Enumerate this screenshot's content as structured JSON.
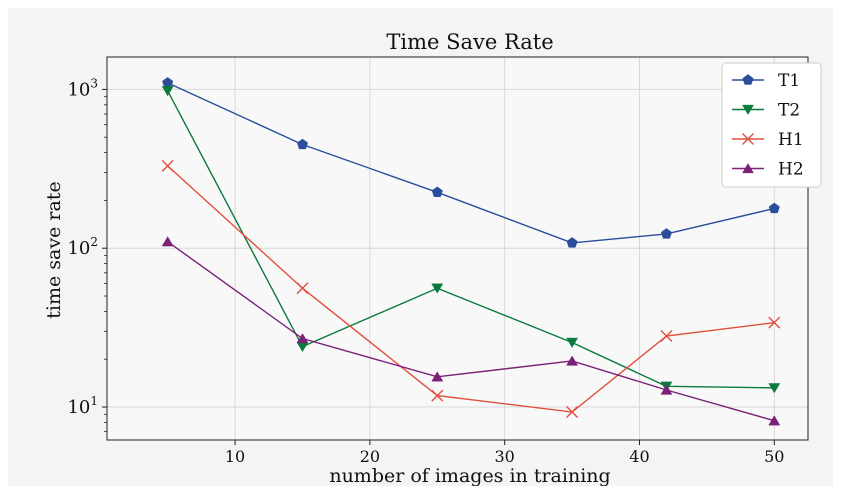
{
  "chart_data": {
    "type": "line",
    "title": "Time Save Rate",
    "xlabel": "number of images in training",
    "ylabel": "time save rate",
    "xlim": [
      0.5,
      52.5
    ],
    "ylim": [
      6.2,
      1600
    ],
    "yscale": "log",
    "x_ticks": [
      10,
      20,
      30,
      40,
      50
    ],
    "y_ticks": [
      {
        "base": "10",
        "exp": "1",
        "value": 10
      },
      {
        "base": "10",
        "exp": "2",
        "value": 100
      },
      {
        "base": "10",
        "exp": "3",
        "value": 1000
      }
    ],
    "grid": true,
    "legend_position": "top-right",
    "series": [
      {
        "name": "T1",
        "color": "#2a4d9c",
        "marker": "pentagon",
        "x": [
          5,
          15,
          25,
          35,
          42,
          50
        ],
        "y": [
          1100,
          450,
          225,
          108,
          123,
          178
        ]
      },
      {
        "name": "T2",
        "color": "#0a7a3c",
        "marker": "triangle-down",
        "x": [
          5,
          15,
          25,
          35,
          42,
          50
        ],
        "y": [
          980,
          24,
          56,
          25.5,
          13.5,
          13.2
        ]
      },
      {
        "name": "H1",
        "color": "#e0503c",
        "marker": "x",
        "x": [
          5,
          15,
          25,
          35,
          42,
          50
        ],
        "y": [
          330,
          56,
          11.8,
          9.3,
          28,
          34
        ]
      },
      {
        "name": "H2",
        "color": "#7b2077",
        "marker": "triangle-up",
        "x": [
          5,
          15,
          25,
          35,
          42,
          50
        ],
        "y": [
          110,
          27,
          15.5,
          19.5,
          12.8,
          8.2
        ]
      }
    ]
  }
}
